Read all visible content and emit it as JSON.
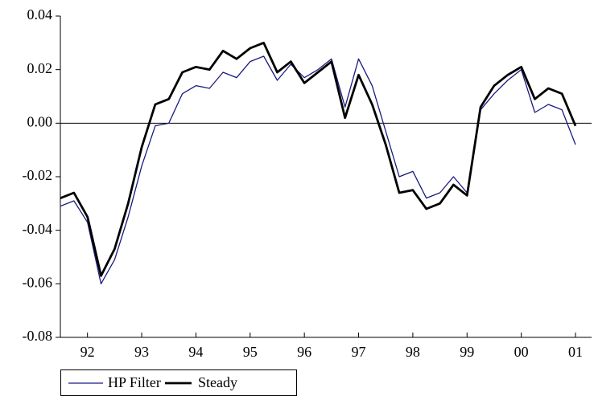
{
  "chart_data": {
    "type": "line",
    "categories": [
      null,
      null,
      "92",
      null,
      null,
      null,
      "93",
      null,
      null,
      null,
      "94",
      null,
      null,
      null,
      "95",
      null,
      null,
      null,
      "96",
      null,
      null,
      null,
      "97",
      null,
      null,
      null,
      "98",
      null,
      null,
      null,
      "99",
      null,
      null,
      null,
      "00",
      null,
      null,
      null,
      "01"
    ],
    "series": [
      {
        "name": "HP Filter",
        "color": "#1a1a80",
        "values": [
          -0.031,
          -0.029,
          -0.037,
          -0.06,
          -0.051,
          -0.035,
          -0.016,
          -0.001,
          0.0,
          0.011,
          0.014,
          0.013,
          0.019,
          0.017,
          0.023,
          0.025,
          0.016,
          0.022,
          0.017,
          0.02,
          0.024,
          0.006,
          0.024,
          0.014,
          -0.003,
          -0.02,
          -0.018,
          -0.028,
          -0.026,
          -0.02,
          -0.026,
          0.005,
          0.011,
          0.016,
          0.02,
          0.004,
          0.007,
          0.005,
          -0.008
        ]
      },
      {
        "name": "Steady",
        "color": "#000000",
        "values": [
          -0.028,
          -0.026,
          -0.035,
          -0.057,
          -0.047,
          -0.03,
          -0.009,
          0.007,
          0.009,
          0.019,
          0.021,
          0.02,
          0.027,
          0.024,
          0.028,
          0.03,
          0.019,
          0.023,
          0.015,
          0.019,
          0.023,
          0.002,
          0.018,
          0.007,
          -0.008,
          -0.026,
          -0.025,
          -0.032,
          -0.03,
          -0.023,
          -0.027,
          0.006,
          0.014,
          0.018,
          0.021,
          0.009,
          0.013,
          0.011,
          -0.001
        ]
      }
    ],
    "ylim": [
      -0.08,
      0.04
    ],
    "yticks": [
      -0.08,
      -0.06,
      -0.04,
      -0.02,
      {
        "value": 0,
        "label": "0.00"
      },
      0.02,
      0.04
    ],
    "zero_line": true,
    "legend": "bottom-left"
  }
}
